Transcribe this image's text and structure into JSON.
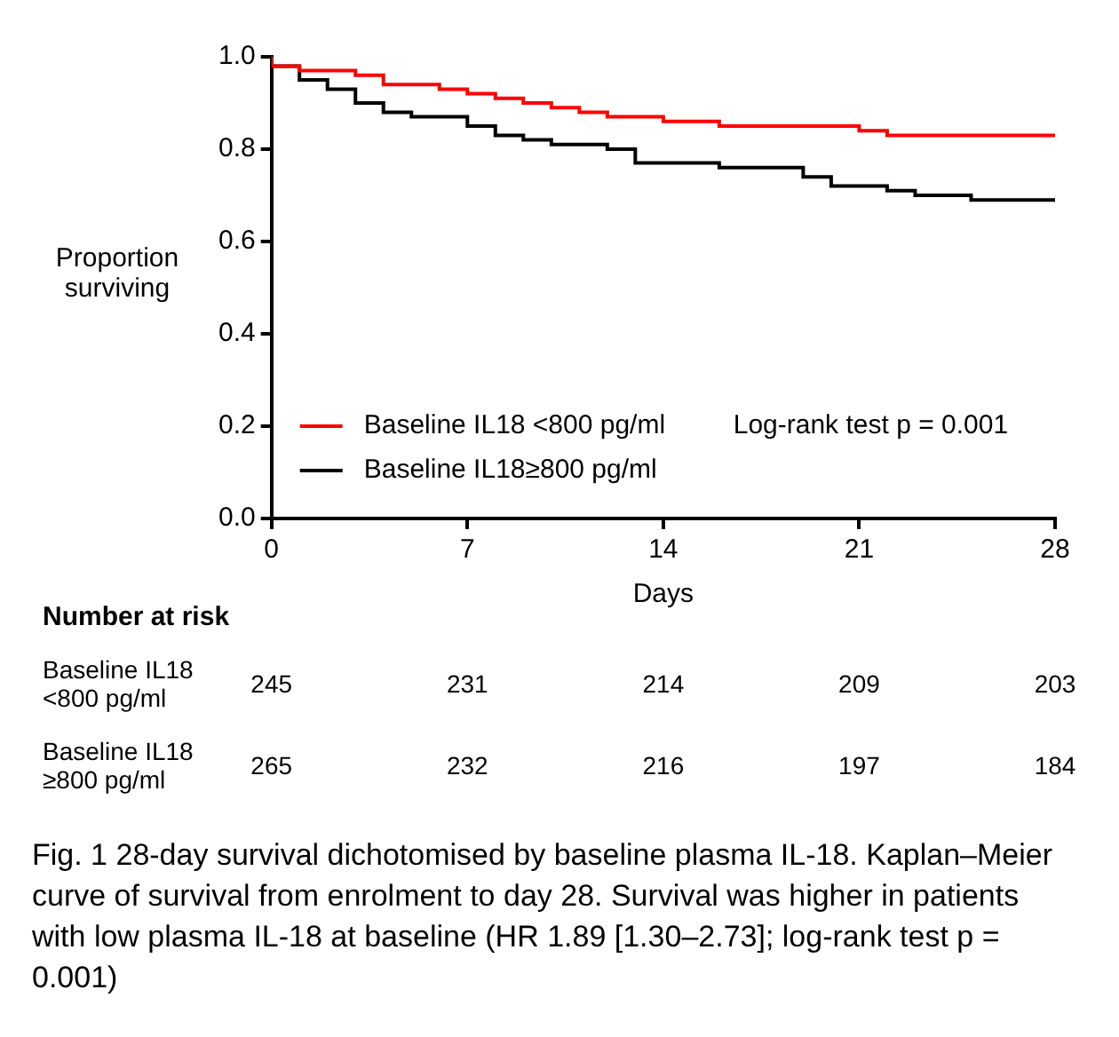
{
  "chart_data": {
    "type": "step",
    "xlabel": "Days",
    "ylabel": "Proportion surviving",
    "xlim": [
      0,
      28
    ],
    "xticks": [
      0,
      7,
      14,
      21,
      28
    ],
    "ylim": [
      0,
      1
    ],
    "yticks": [
      {
        "value": 0,
        "label": "0.0"
      },
      0.2,
      0.4,
      0.6,
      0.8,
      {
        "value": 1,
        "label": "1.0"
      }
    ],
    "series": [
      {
        "name": "Baseline IL18 <800 pg/ml",
        "color": "#ff0000",
        "x": [
          0,
          1,
          3,
          4,
          6,
          7,
          8,
          9,
          10,
          11,
          12,
          13,
          14,
          16,
          19,
          21,
          22,
          23,
          28
        ],
        "values": [
          1.0,
          0.98,
          0.97,
          0.96,
          0.94,
          0.93,
          0.92,
          0.91,
          0.9,
          0.89,
          0.88,
          0.87,
          0.87,
          0.86,
          0.85,
          0.85,
          0.84,
          0.83,
          0.83
        ]
      },
      {
        "name": "Baseline IL18≥800 pg/ml",
        "color": "#000000",
        "x": [
          0,
          1,
          2,
          3,
          4,
          5,
          6,
          7,
          8,
          9,
          10,
          12,
          13,
          15,
          16,
          17,
          19,
          20,
          21,
          22,
          23,
          24,
          25,
          26,
          28
        ],
        "values": [
          1.0,
          0.98,
          0.95,
          0.93,
          0.9,
          0.88,
          0.87,
          0.87,
          0.85,
          0.83,
          0.82,
          0.81,
          0.8,
          0.77,
          0.77,
          0.76,
          0.76,
          0.74,
          0.72,
          0.72,
          0.71,
          0.7,
          0.7,
          0.69,
          0.69
        ]
      }
    ],
    "legend": "bottom left",
    "grid": false,
    "annotations": [
      "Log-rank test p = 0.001",
      "Number at risk",
      "Baseline IL18\n<800 pg/ml",
      "245",
      "231",
      "214",
      "209",
      "203",
      "Baseline IL18\n≥800 pg/ml",
      "265",
      "232",
      "216",
      "197",
      "184",
      "Fig. 1 28-day survival dichotomised by baseline plasma IL-18. Kaplan–Meier curve of survival from enrolment to day 28. Survival was higher in patients with low plasma IL-18 at baseline (HR 1.89 [1.30–2.73]; log-rank test p = 0.001)"
    ]
  }
}
